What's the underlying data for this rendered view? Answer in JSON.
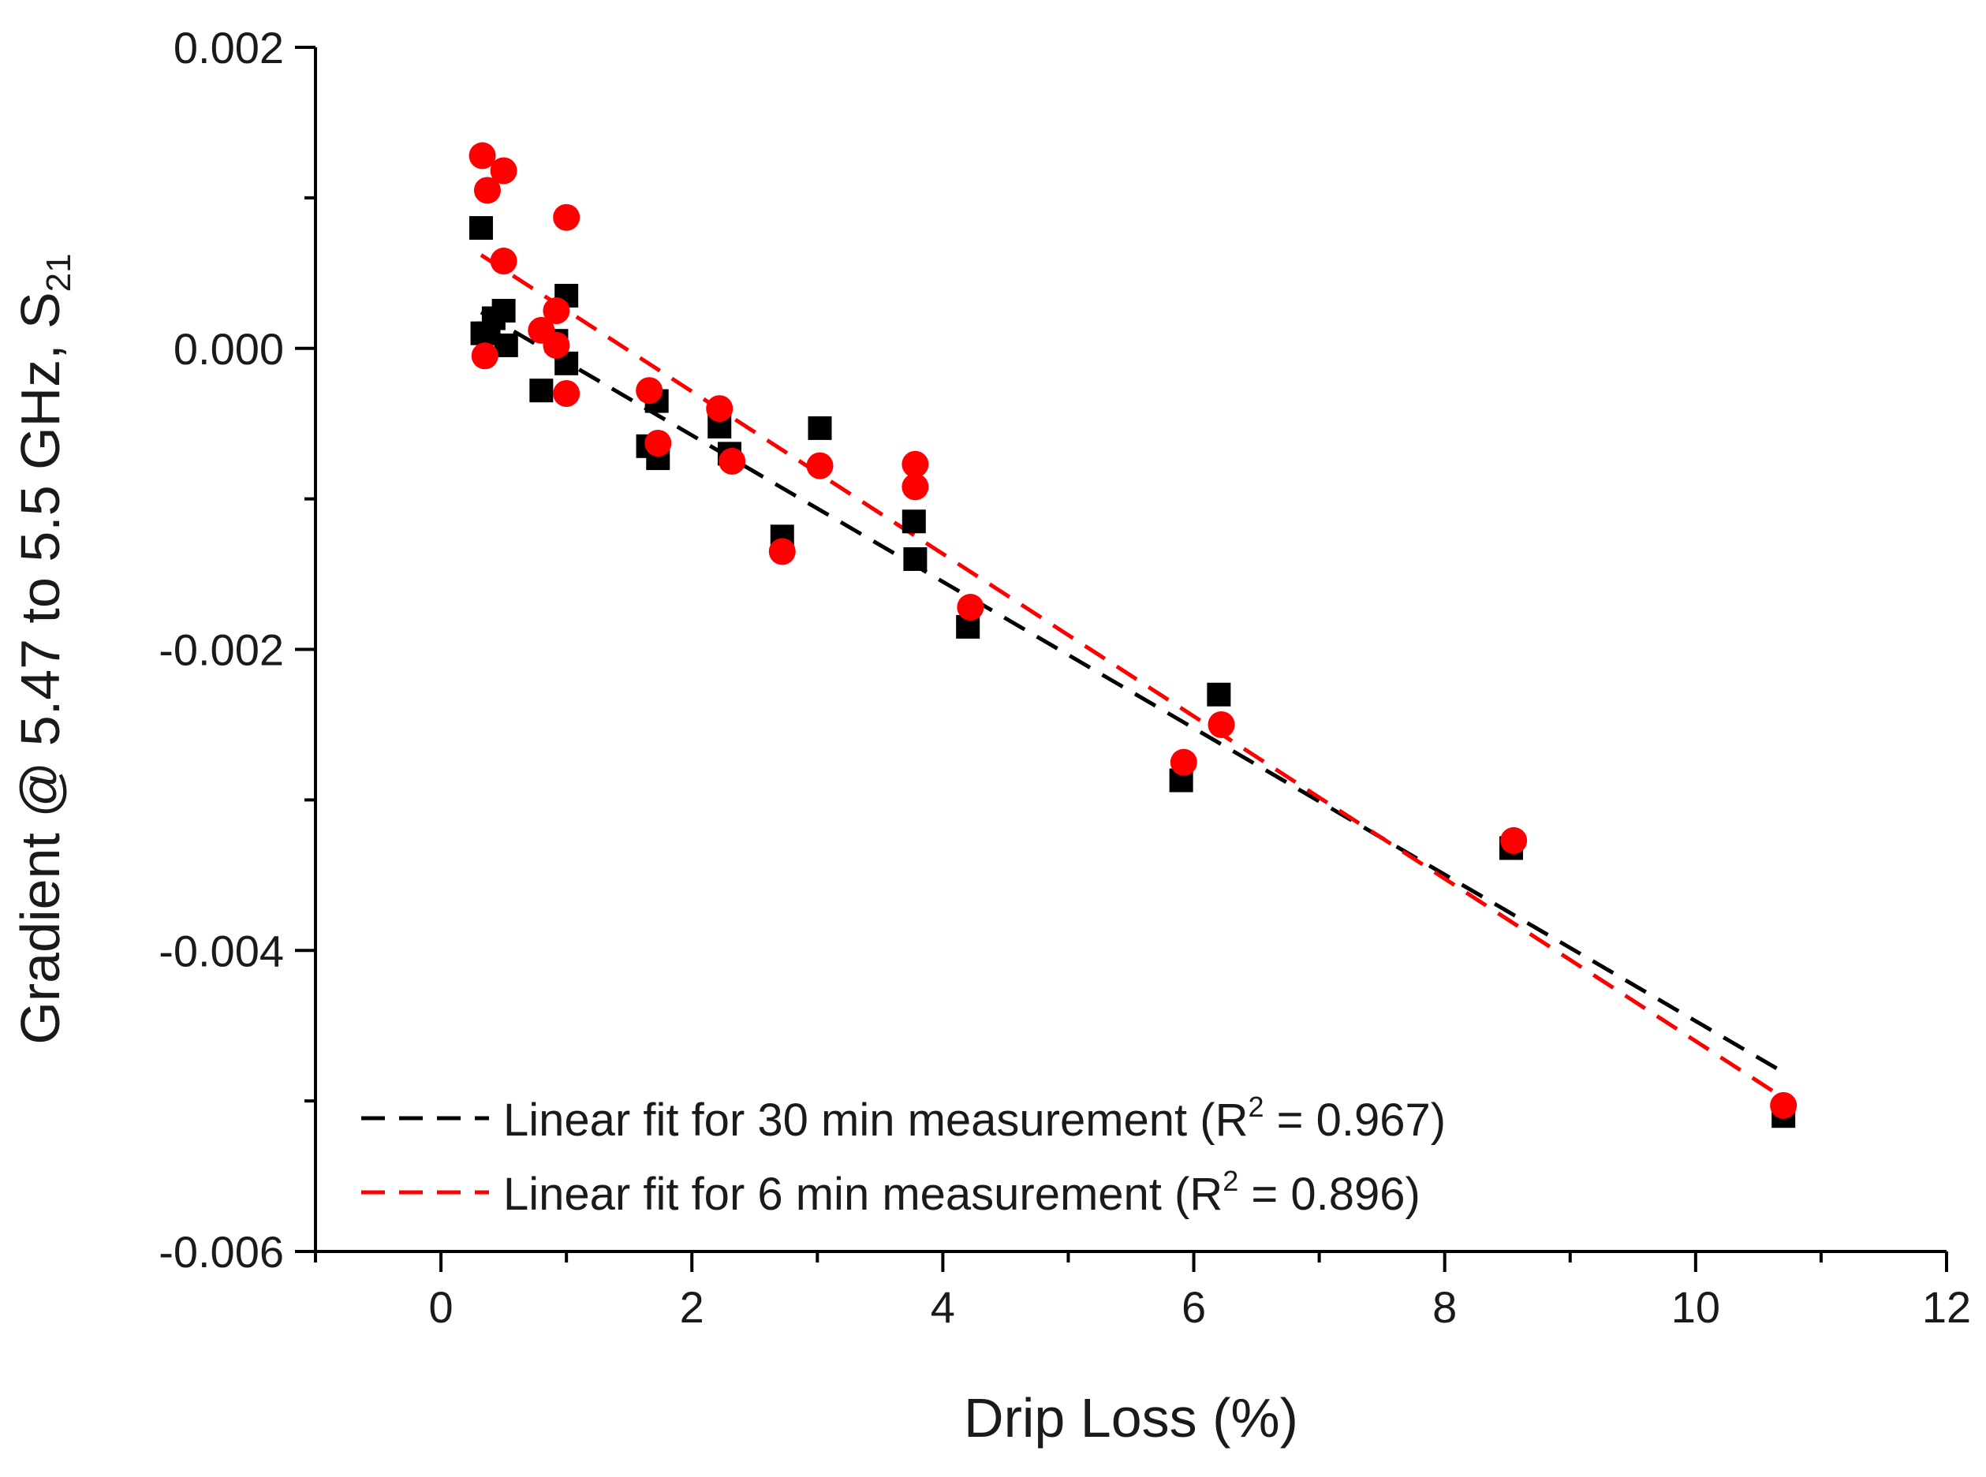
{
  "chart_data": {
    "type": "scatter",
    "title": "",
    "xlabel": "Drip Loss (%)",
    "ylabel": {
      "main": "Gradient @ 5.47 to 5.5 GHz, S",
      "sub": "21"
    },
    "xlim": [
      -1,
      12
    ],
    "ylim": [
      -0.006,
      0.002
    ],
    "x_ticks": [
      0,
      2,
      4,
      6,
      8,
      10,
      12
    ],
    "x_tick_labels": [
      "0",
      "2",
      "4",
      "6",
      "8",
      "10",
      "12"
    ],
    "y_ticks": [
      -0.006,
      -0.004,
      -0.002,
      0.0,
      0.002
    ],
    "y_tick_labels": [
      "-0.006",
      "-0.004",
      "-0.002",
      "0.000",
      "0.002"
    ],
    "grid": false,
    "legend_position": "bottom-left",
    "series": [
      {
        "name": "30 min measurement",
        "marker": "square",
        "color": "#000000",
        "points": [
          [
            0.32,
            0.0008
          ],
          [
            0.33,
            0.0001
          ],
          [
            0.38,
            0.0001
          ],
          [
            0.42,
            0.0002
          ],
          [
            0.5,
            0.00025
          ],
          [
            0.52,
            2e-05
          ],
          [
            0.8,
            -0.00028
          ],
          [
            0.92,
            5e-05
          ],
          [
            1.0,
            0.00035
          ],
          [
            1.0,
            -0.0001
          ],
          [
            1.65,
            -0.00065
          ],
          [
            1.72,
            -0.00035
          ],
          [
            1.73,
            -0.00073
          ],
          [
            2.22,
            -0.00052
          ],
          [
            2.3,
            -0.0007
          ],
          [
            2.72,
            -0.00125
          ],
          [
            3.02,
            -0.00053
          ],
          [
            3.77,
            -0.00115
          ],
          [
            3.78,
            -0.0014
          ],
          [
            4.2,
            -0.00185
          ],
          [
            5.9,
            -0.00287
          ],
          [
            6.2,
            -0.0023
          ],
          [
            8.53,
            -0.00332
          ],
          [
            10.7,
            -0.0051
          ]
        ]
      },
      {
        "name": "6 min measurement",
        "marker": "circle",
        "color": "#ff0000",
        "points": [
          [
            0.33,
            0.00128
          ],
          [
            0.37,
            0.00105
          ],
          [
            0.5,
            0.00118
          ],
          [
            0.5,
            0.00058
          ],
          [
            0.35,
            -5e-05
          ],
          [
            0.8,
            0.00012
          ],
          [
            0.92,
            0.00025
          ],
          [
            0.92,
            2e-05
          ],
          [
            1.0,
            0.00087
          ],
          [
            1.0,
            -0.0003
          ],
          [
            1.66,
            -0.00028
          ],
          [
            1.73,
            -0.00063
          ],
          [
            2.22,
            -0.0004
          ],
          [
            2.32,
            -0.00075
          ],
          [
            2.72,
            -0.00135
          ],
          [
            3.02,
            -0.00078
          ],
          [
            3.78,
            -0.00077
          ],
          [
            3.78,
            -0.00092
          ],
          [
            4.22,
            -0.00172
          ],
          [
            5.92,
            -0.00275
          ],
          [
            6.22,
            -0.0025
          ],
          [
            8.55,
            -0.00327
          ],
          [
            10.7,
            -0.00503
          ]
        ]
      }
    ],
    "fits": [
      {
        "label": "Linear fit for 30 min measurement (R",
        "sup": "2",
        "suffix": " = 0.967)",
        "color": "#000000",
        "x_range": [
          0.32,
          10.7
        ],
        "y_range": [
          0.00024,
          -0.00481
        ]
      },
      {
        "label": "Linear fit for 6 min measurement (R",
        "sup": "2",
        "suffix": " = 0.896)",
        "color": "#ff0000",
        "x_range": [
          0.32,
          10.7
        ],
        "y_range": [
          0.00062,
          -0.00498
        ]
      }
    ]
  }
}
